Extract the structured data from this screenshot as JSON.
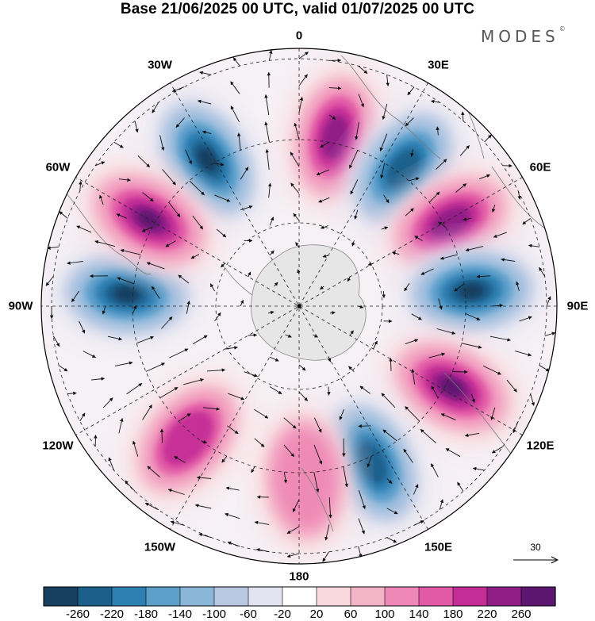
{
  "title": "Base 21/06/2025 00 UTC, valid 01/07/2025 00 UTC",
  "brand": "MODES",
  "brand_mark": "©",
  "projection": "south-polar-stereographic",
  "longitude_labels": [
    {
      "id": "lon-0",
      "text": "0",
      "lon": 0
    },
    {
      "id": "lon-30e",
      "text": "30E",
      "lon": 30
    },
    {
      "id": "lon-60e",
      "text": "60E",
      "lon": 60
    },
    {
      "id": "lon-90e",
      "text": "90E",
      "lon": 90
    },
    {
      "id": "lon-120e",
      "text": "120E",
      "lon": 120
    },
    {
      "id": "lon-150e",
      "text": "150E",
      "lon": 150
    },
    {
      "id": "lon-180",
      "text": "180",
      "lon": 180
    },
    {
      "id": "lon-150w",
      "text": "150W",
      "lon": -150
    },
    {
      "id": "lon-120w",
      "text": "120W",
      "lon": -120
    },
    {
      "id": "lon-90w",
      "text": "90W",
      "lon": -90
    },
    {
      "id": "lon-60w",
      "text": "60W",
      "lon": -60
    },
    {
      "id": "lon-30w",
      "text": "30W",
      "lon": -30
    }
  ],
  "reference_vector": {
    "value": "30"
  },
  "colorbar": {
    "labels": [
      "-260",
      "-220",
      "-180",
      "-140",
      "-100",
      "-60",
      "-20",
      "20",
      "60",
      "100",
      "140",
      "180",
      "220",
      "260"
    ],
    "colors": [
      "#173e5e",
      "#1c5f8b",
      "#2e7fb2",
      "#5c9fcb",
      "#8ab6d9",
      "#b8c7e2",
      "#e2e3f1",
      "#ffffff",
      "#fad8de",
      "#f4b4c7",
      "#ee88b6",
      "#e25aa6",
      "#c42d96",
      "#8f1e86",
      "#5c1670"
    ]
  },
  "anomaly_centers": [
    {
      "lon": -32,
      "level": "-260"
    },
    {
      "lon": 12,
      "level": "220"
    },
    {
      "lon": 37,
      "level": "-220"
    },
    {
      "lon": 61,
      "level": "220"
    },
    {
      "lon": 85,
      "level": "-260"
    },
    {
      "lon": 118,
      "level": "260"
    },
    {
      "lon": 155,
      "level": "-220"
    },
    {
      "lon": 178,
      "level": "100"
    },
    {
      "lon": -140,
      "level": "180"
    },
    {
      "lon": -86,
      "level": "-260"
    },
    {
      "lon": -60,
      "level": "260"
    }
  ]
}
